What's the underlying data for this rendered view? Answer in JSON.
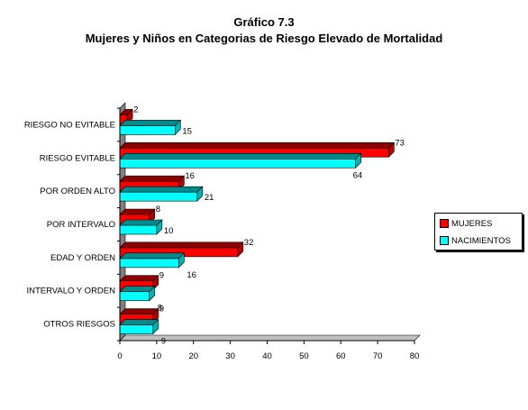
{
  "chart_data": {
    "type": "bar",
    "orientation": "horizontal",
    "title": "Gráfico 7.3",
    "subtitle": "Mujeres y Niños en Categorias de Riesgo Elevado de Mortalidad",
    "categories": [
      "RIESGO NO EVITABLE",
      "RIESGO EVITABLE",
      "POR ORDEN ALTO",
      "POR INTERVALO",
      "EDAD Y ORDEN",
      "INTERVALO Y ORDEN",
      "OTROS RIESGOS"
    ],
    "series": [
      {
        "name": "MUJERES",
        "color": "#ff0000",
        "values": [
          2,
          73,
          16,
          8,
          32,
          9,
          9
        ]
      },
      {
        "name": "NACIMIENTOS",
        "color": "#00ffff",
        "values": [
          15,
          64,
          21,
          10,
          16,
          8,
          9
        ]
      }
    ],
    "xlim": [
      0,
      80
    ],
    "xticks": [
      0,
      10,
      20,
      30,
      40,
      50,
      60,
      70,
      80
    ],
    "legend_position": "right",
    "style": "3d"
  }
}
